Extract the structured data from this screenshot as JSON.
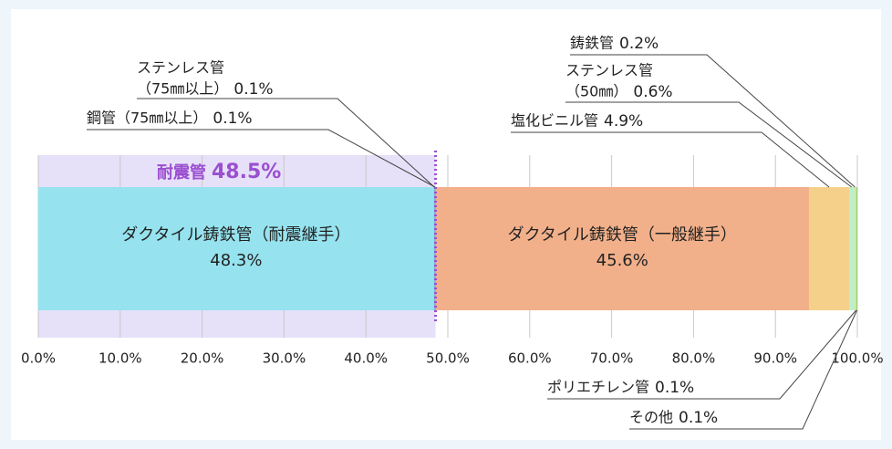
{
  "chart_data": {
    "type": "stacked_bar",
    "annotation": {
      "text": "耐震管",
      "value": 48.5,
      "value_label": "48.5%",
      "color": "#9b4fd0"
    },
    "series": [
      {
        "name": "ダクタイル鋳鉄管（耐震継手）",
        "values": [
          48.3
        ],
        "value_labels": [
          "48.3%"
        ],
        "color": "#96e3ef"
      },
      {
        "name": [
          "ステンレス管",
          "（75㎜以上）"
        ],
        "values": [
          0.1
        ],
        "value_labels": [
          "0.1%"
        ],
        "color": "#7fb6e0"
      },
      {
        "name": "鋼管（75㎜以上）",
        "values": [
          0.1
        ],
        "value_labels": [
          "0.1%"
        ],
        "color": "#6a9fd6"
      },
      {
        "name": "ダクタイル鋳鉄管（一般継手）",
        "values": [
          45.6
        ],
        "value_labels": [
          "45.6%"
        ],
        "color": "#f2b08a"
      },
      {
        "name": "塩化ビニル管",
        "values": [
          4.9
        ],
        "value_labels": [
          "4.9%"
        ],
        "color": "#f5d08a"
      },
      {
        "name": [
          "ステンレス管",
          "（50㎜）"
        ],
        "values": [
          0.6
        ],
        "value_labels": [
          "0.6%"
        ],
        "color": "#b8f0d0"
      },
      {
        "name": "鋳鉄管",
        "values": [
          0.2
        ],
        "value_labels": [
          "0.2%"
        ],
        "color": "#d0e8a0"
      },
      {
        "name": "ポリエチレン管",
        "values": [
          0.1
        ],
        "value_labels": [
          "0.1%"
        ],
        "color": "#c8e090"
      },
      {
        "name": "その他",
        "values": [
          0.1
        ],
        "value_labels": [
          "0.1%"
        ],
        "color": "#90c878"
      }
    ],
    "xlim": [
      0,
      100
    ],
    "xticks": [
      {
        "value": 0,
        "label": "0.0%"
      },
      {
        "value": 10,
        "label": "10.0%"
      },
      {
        "value": 20,
        "label": "20.0%"
      },
      {
        "value": 30,
        "label": "30.0%"
      },
      {
        "value": 40,
        "label": "40.0%"
      },
      {
        "value": 50,
        "label": "50.0%"
      },
      {
        "value": 60,
        "label": "60.0%"
      },
      {
        "value": 70,
        "label": "70.0%"
      },
      {
        "value": 80,
        "label": "80.0%"
      },
      {
        "value": 90,
        "label": "90.0%"
      },
      {
        "value": 100,
        "label": "100.0%"
      }
    ],
    "grid": true
  }
}
